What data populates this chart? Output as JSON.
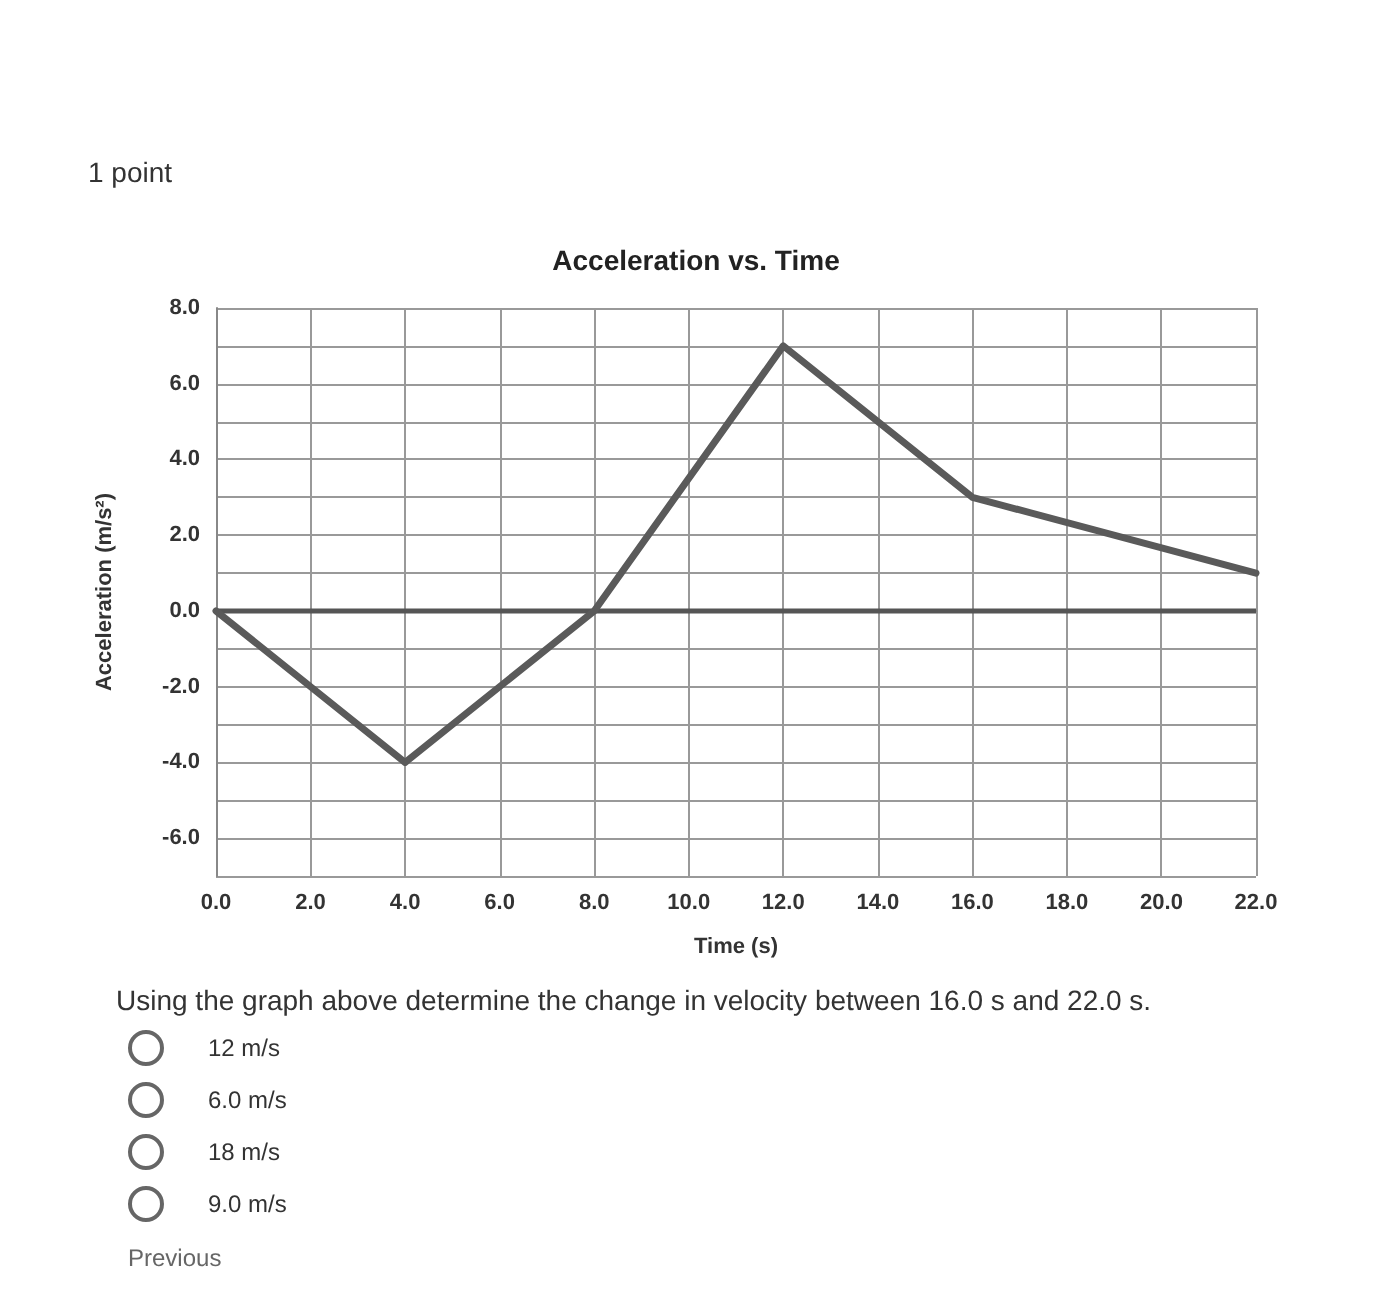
{
  "chart_data": {
    "type": "line",
    "title": "Acceleration vs. Time",
    "xlabel": "Time (s)",
    "ylabel": "Acceleration (m/s²)",
    "x": [
      0,
      4,
      8,
      12,
      16,
      22
    ],
    "series": [
      {
        "color": "#5a5a5a",
        "values": [
          0,
          -4,
          0,
          7,
          3,
          1
        ]
      }
    ],
    "xlim": [
      0,
      22
    ],
    "xticks": [
      {
        "value": 0,
        "label": "0.0"
      },
      {
        "value": 2,
        "label": "2.0"
      },
      {
        "value": 4,
        "label": "4.0"
      },
      {
        "value": 6,
        "label": "6.0"
      },
      {
        "value": 8,
        "label": "8.0"
      },
      {
        "value": 10,
        "label": "10.0"
      },
      {
        "value": 12,
        "label": "12.0"
      },
      {
        "value": 14,
        "label": "14.0"
      },
      {
        "value": 16,
        "label": "16.0"
      },
      {
        "value": 18,
        "label": "18.0"
      },
      {
        "value": 20,
        "label": "20.0"
      },
      {
        "value": 22,
        "label": "22.0"
      }
    ],
    "ylim": [
      -7,
      8
    ],
    "yticks": [
      {
        "value": -7,
        "label": null
      },
      {
        "value": -6,
        "label": "-6.0"
      },
      {
        "value": -5,
        "label": null
      },
      {
        "value": -4,
        "label": "-4.0"
      },
      {
        "value": -3,
        "label": null
      },
      {
        "value": -2,
        "label": "-2.0"
      },
      {
        "value": -1,
        "label": null
      },
      {
        "value": 0,
        "label": "0.0"
      },
      {
        "value": 1,
        "label": null
      },
      {
        "value": 2,
        "label": "2.0"
      },
      {
        "value": 3,
        "label": null
      },
      {
        "value": 4,
        "label": "4.0"
      },
      {
        "value": 5,
        "label": null
      },
      {
        "value": 6,
        "label": "6.0"
      },
      {
        "value": 7,
        "label": null
      },
      {
        "value": 8,
        "label": "8.0"
      }
    ],
    "grid": true,
    "marker": "none",
    "line_style": "solid",
    "ref_lines": [
      {
        "axis": "y",
        "value": 0,
        "color": "#555555"
      }
    ],
    "annotations": [
      "1 point",
      "Using the graph above determine the change in velocity between 16.0 s and 22.0 s.",
      "12 m/s",
      "6.0 m/s",
      "18 m/s",
      "9.0 m/s",
      "Previous"
    ]
  }
}
